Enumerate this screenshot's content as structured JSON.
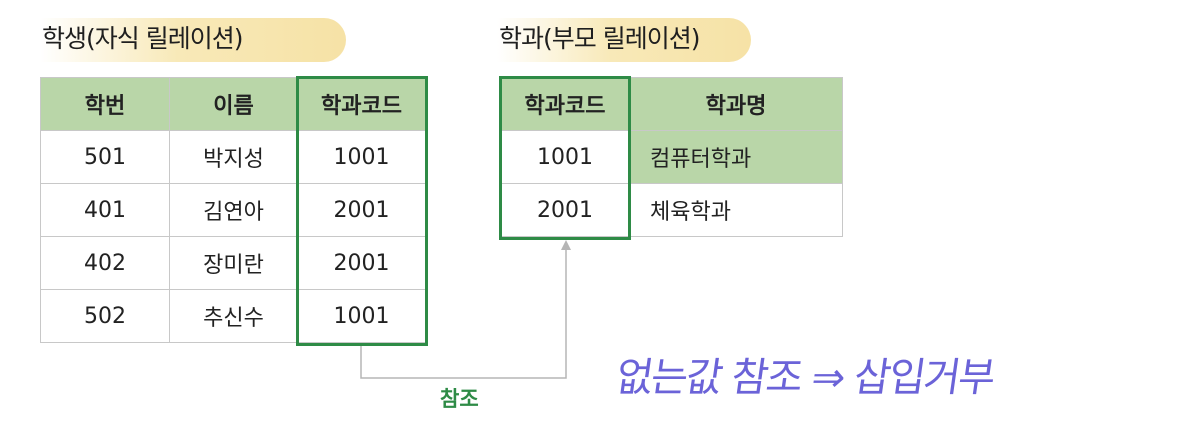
{
  "child": {
    "title": "학생(자식 릴레이션)",
    "headers": [
      "학번",
      "이름",
      "학과코드"
    ],
    "rows": [
      [
        "501",
        "박지성",
        "1001"
      ],
      [
        "401",
        "김연아",
        "2001"
      ],
      [
        "402",
        "장미란",
        "2001"
      ],
      [
        "502",
        "추신수",
        "1001"
      ]
    ]
  },
  "parent": {
    "title": "학과(부모 릴레이션)",
    "headers": [
      "학과코드",
      "학과명"
    ],
    "rows": [
      [
        "1001",
        "컴퓨터학과"
      ],
      [
        "2001",
        "체육학과"
      ]
    ]
  },
  "reference_label": "참조",
  "handwritten_note": "없는값 참조 ⇒ 삽입거부",
  "colors": {
    "header_bg": "#b9d6a8",
    "key_border": "#2e8b46",
    "title_highlight": "#f6e2a6",
    "note": "#6b63d8"
  }
}
